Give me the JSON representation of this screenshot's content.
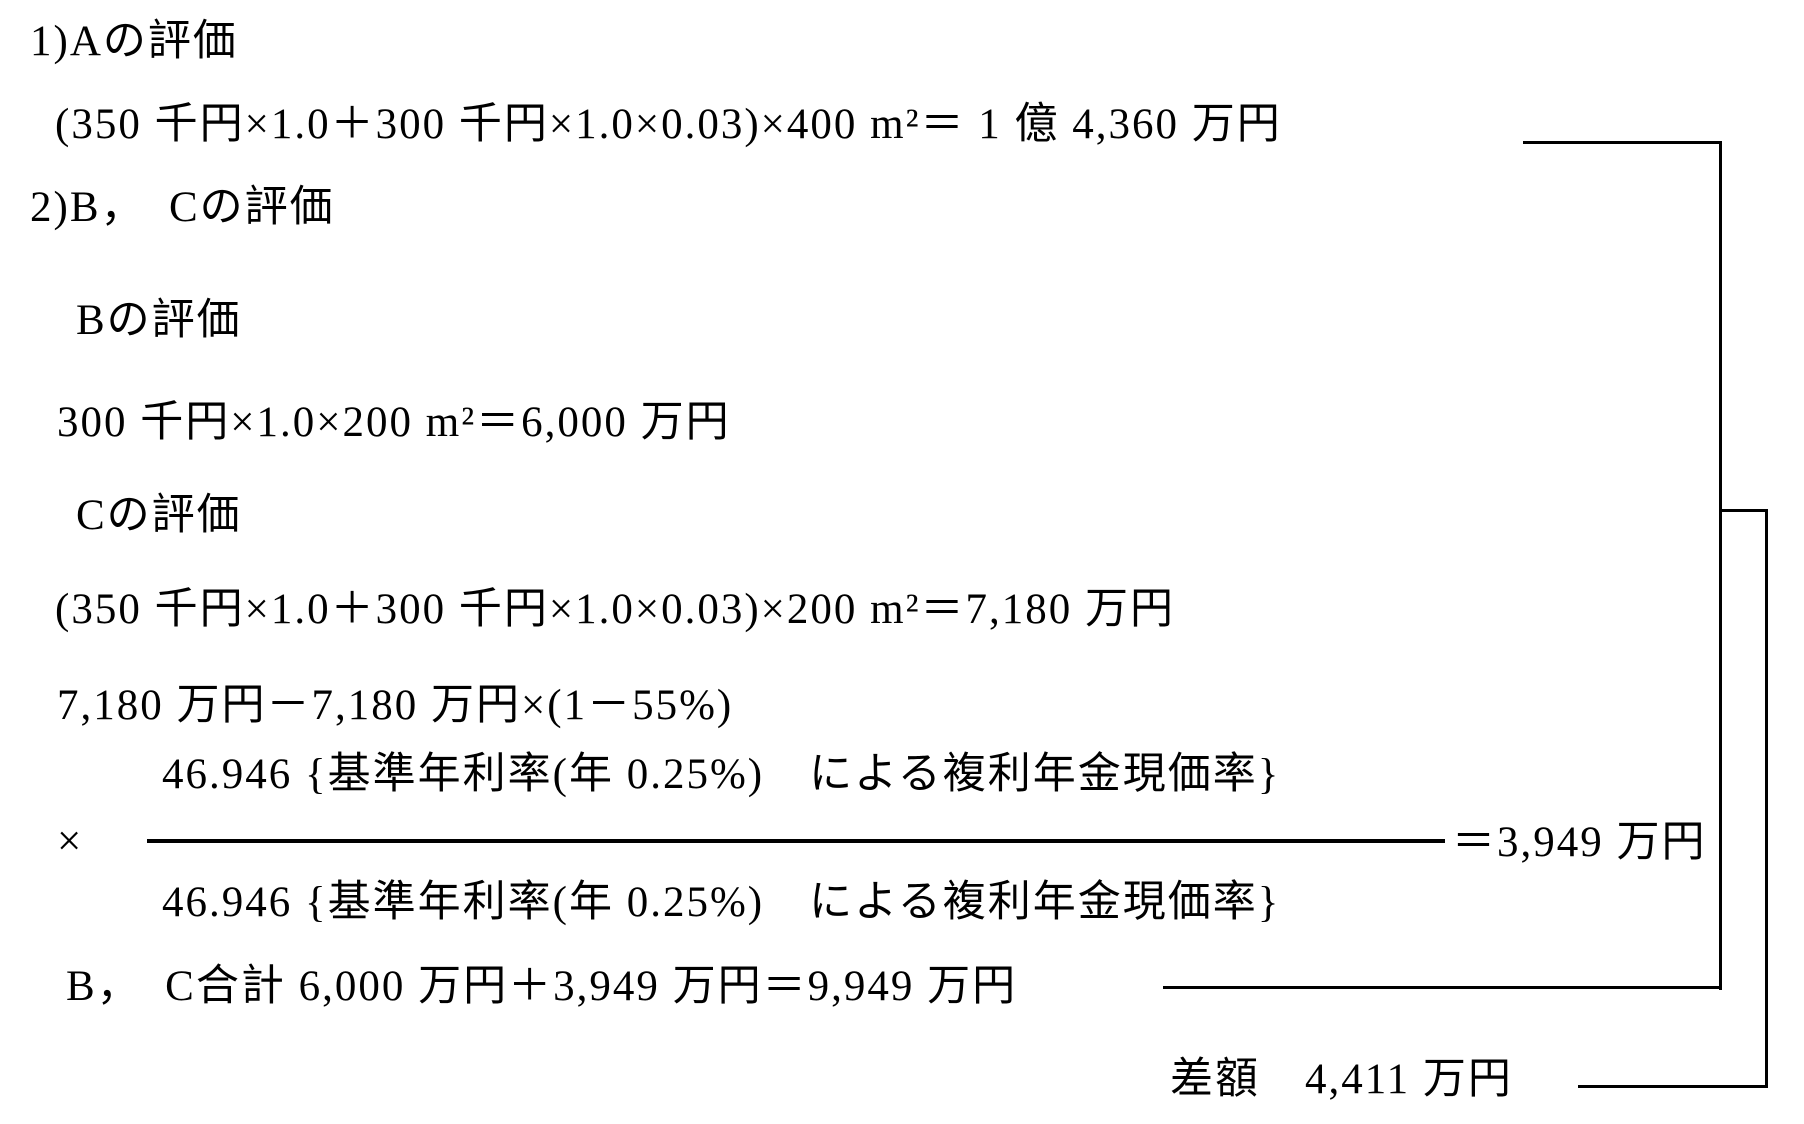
{
  "document": {
    "background_color": "#ffffff",
    "text_color": "#000000",
    "section_a": {
      "heading": "1)Aの評価",
      "formula": "(350 千円×1.0＋300 千円×1.0×0.03)×400 m²＝ 1 億 4,360 万円"
    },
    "section_bc": {
      "heading": "2)B，　Cの評価",
      "b": {
        "heading": "Bの評価",
        "formula": "300 千円×1.0×200 m²＝6,000 万円"
      },
      "c": {
        "heading": "Cの評価",
        "formula_value": "(350 千円×1.0＋300 千円×1.0×0.03)×200 m²＝7,180 万円",
        "formula_adjustment": "7,180 万円－7,180 万円×(1－55%)",
        "fraction": {
          "multiplier": "×",
          "numerator": "46.946 {基準年利率(年 0.25%)　による複利年金現価率}",
          "denominator": "46.946 {基準年利率(年 0.25%)　による複利年金現価率}",
          "result": "＝3,949 万円"
        }
      },
      "total": "B，　C合計 6,000 万円＋3,949 万円＝9,949 万円"
    },
    "difference": "差額　4,411 万円"
  }
}
